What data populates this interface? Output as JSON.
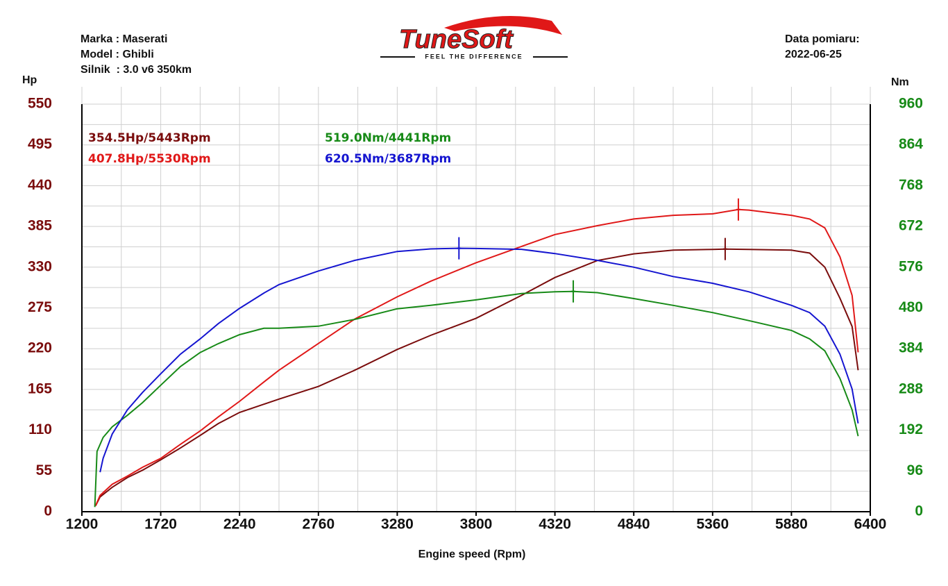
{
  "header": {
    "make": "Marka : Maserati",
    "model": "Model : Ghibli",
    "engine": "Silnik  : 3.0 v6 350km",
    "date_label": "Data pomiaru:",
    "date": "2022-06-25"
  },
  "logo": {
    "name": "TuneSoft",
    "tagline": "FEEL THE DIFFERENCE"
  },
  "chart_data": {
    "type": "line",
    "x_label": "Engine speed (Rpm)",
    "y_label": "Hp",
    "y2_label": "Nm",
    "xlim": [
      1200,
      6400
    ],
    "xticks": [
      1200,
      1720,
      2240,
      2760,
      3280,
      3800,
      4320,
      4840,
      5360,
      5880,
      6400
    ],
    "ylim": [
      0,
      550
    ],
    "yticks": [
      0,
      55,
      110,
      165,
      220,
      275,
      330,
      385,
      440,
      495,
      550
    ],
    "y2lim": [
      0,
      960
    ],
    "y2ticks": [
      0,
      96,
      192,
      288,
      384,
      480,
      576,
      672,
      768,
      864,
      960
    ],
    "grid": true,
    "y_color": "#7a0c0c",
    "y2_color": "#178a17",
    "annotations": [
      {
        "text": "354.5Hp/5443Rpm",
        "color": "#7a0c0c"
      },
      {
        "text": "407.8Hp/5530Rpm",
        "color": "#e01818"
      },
      {
        "text": "519.0Nm/4441Rpm",
        "color": "#178a17"
      },
      {
        "text": "620.5Nm/3687Rpm",
        "color": "#1515d0"
      }
    ],
    "series": [
      {
        "color": "#7a0c0c",
        "axis": "y",
        "x": [
          1290,
          1320,
          1400,
          1500,
          1600,
          1720,
          1850,
          1980,
          2100,
          2240,
          2400,
          2500,
          2760,
          3000,
          3280,
          3500,
          3800,
          4100,
          4320,
          4600,
          4840,
          5100,
          5360,
          5443,
          5600,
          5880,
          6000,
          6100,
          6200,
          6280,
          6320
        ],
        "values": [
          8,
          20,
          33,
          46,
          56,
          70,
          86,
          103,
          119,
          134,
          145,
          152,
          169,
          191,
          219,
          238,
          261,
          292,
          316,
          339,
          348,
          353,
          354,
          354.5,
          354,
          353,
          349,
          330,
          288,
          250,
          191
        ]
      },
      {
        "color": "#e01818",
        "axis": "y",
        "x": [
          1290,
          1320,
          1400,
          1500,
          1600,
          1720,
          1850,
          1980,
          2100,
          2240,
          2400,
          2500,
          2760,
          3000,
          3280,
          3500,
          3800,
          4100,
          4320,
          4600,
          4840,
          5100,
          5360,
          5530,
          5600,
          5880,
          6000,
          6100,
          6200,
          6280,
          6320
        ],
        "values": [
          8,
          22,
          37,
          48,
          60,
          72,
          91,
          109,
          128,
          149,
          175,
          191,
          227,
          260,
          290,
          311,
          336,
          358,
          374,
          386,
          395,
          400,
          402,
          407.8,
          407,
          400,
          395,
          383,
          344,
          292,
          215
        ]
      },
      {
        "color": "#178a17",
        "axis": "y2",
        "x": [
          1285,
          1300,
          1340,
          1400,
          1500,
          1600,
          1720,
          1850,
          1980,
          2100,
          2240,
          2400,
          2500,
          2760,
          3000,
          3280,
          3500,
          3800,
          4100,
          4320,
          4441,
          4600,
          4840,
          5100,
          5360,
          5600,
          5880,
          6000,
          6100,
          6200,
          6280,
          6320
        ],
        "values": [
          11,
          142,
          175,
          200,
          227,
          257,
          298,
          342,
          375,
          396,
          417,
          432,
          432,
          437,
          453,
          478,
          486,
          499,
          514,
          518,
          519,
          516,
          502,
          486,
          469,
          450,
          427,
          407,
          379,
          314,
          240,
          178
        ]
      },
      {
        "color": "#1515d0",
        "axis": "y2",
        "x": [
          1320,
          1340,
          1400,
          1500,
          1600,
          1720,
          1850,
          1980,
          2100,
          2240,
          2400,
          2500,
          2760,
          3000,
          3280,
          3500,
          3687,
          3800,
          4100,
          4320,
          4600,
          4840,
          5100,
          5360,
          5600,
          5880,
          6000,
          6100,
          6200,
          6280,
          6320
        ],
        "values": [
          93,
          126,
          183,
          240,
          281,
          325,
          371,
          407,
          443,
          479,
          515,
          535,
          567,
          592,
          613,
          619,
          620.5,
          620,
          618,
          608,
          592,
          576,
          554,
          538,
          518,
          486,
          469,
          437,
          371,
          289,
          208
        ]
      }
    ]
  }
}
